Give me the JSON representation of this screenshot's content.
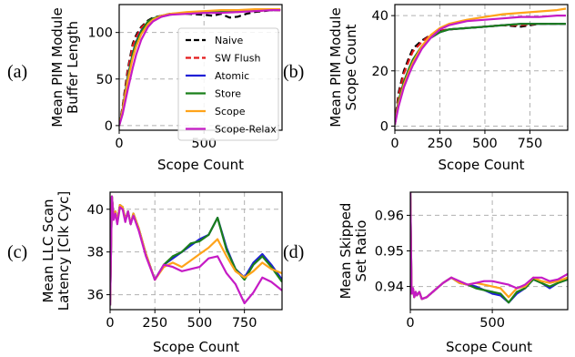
{
  "colors": {
    "Naive": "#000000",
    "SW Flush": "#e41a1c",
    "Atomic": "#1f1fd6",
    "Store": "#1a7f1a",
    "Scope": "#ffa31a",
    "Scope-Relax": "#c51bc5"
  },
  "chart_data": [
    {
      "id": "a",
      "panel_label": "(a)",
      "type": "line",
      "xlabel": "Scope Count",
      "ylabel": [
        "Mean PIM Module",
        "Buffer Length"
      ],
      "xlim": [
        0,
        960
      ],
      "ylim": [
        -5,
        130
      ],
      "xticks": [
        0,
        500
      ],
      "yticks": [
        0,
        50,
        100
      ],
      "grid": true,
      "legend": {
        "placement": "lower-right",
        "entries": [
          "Naive",
          "SW Flush",
          "Atomic",
          "Store",
          "Scope",
          "Scope-Relax"
        ]
      },
      "series": [
        {
          "name": "Naive",
          "style": "dashed",
          "x": [
            0,
            20,
            50,
            80,
            100,
            130,
            170,
            200,
            250,
            300,
            400,
            500,
            550,
            600,
            650,
            700,
            750,
            800,
            850,
            900,
            950
          ],
          "y": [
            0,
            20,
            60,
            88,
            97,
            106,
            113,
            116,
            118,
            120,
            120,
            119,
            118,
            120,
            116,
            117,
            120,
            122,
            123,
            124,
            124
          ]
        },
        {
          "name": "SW Flush",
          "style": "dashed",
          "x": [
            0,
            20,
            50,
            80,
            100,
            130,
            170,
            200,
            250,
            300,
            400,
            500,
            600,
            700,
            800,
            900,
            950
          ],
          "y": [
            0,
            19,
            58,
            86,
            95,
            105,
            112,
            115,
            118,
            120,
            121,
            121,
            122,
            122,
            123,
            124,
            124
          ]
        },
        {
          "name": "Atomic",
          "style": "solid",
          "x": [
            0,
            20,
            50,
            80,
            100,
            130,
            170,
            200,
            250,
            300,
            400,
            500,
            600,
            700,
            800,
            900,
            950
          ],
          "y": [
            0,
            17,
            52,
            78,
            90,
            102,
            111,
            114,
            117,
            119,
            121,
            122,
            122,
            123,
            124,
            124,
            125
          ]
        },
        {
          "name": "Store",
          "style": "solid",
          "x": [
            0,
            20,
            50,
            80,
            100,
            130,
            170,
            200,
            250,
            300,
            400,
            500,
            600,
            700,
            800,
            900,
            950
          ],
          "y": [
            0,
            17,
            51,
            77,
            89,
            101,
            112,
            115,
            118,
            120,
            121,
            122,
            122,
            123,
            124,
            124,
            125
          ]
        },
        {
          "name": "Scope",
          "style": "solid",
          "x": [
            0,
            20,
            50,
            80,
            100,
            130,
            170,
            200,
            250,
            300,
            400,
            500,
            600,
            700,
            800,
            900,
            950
          ],
          "y": [
            0,
            16,
            48,
            73,
            85,
            98,
            109,
            114,
            118,
            120,
            122,
            123,
            124,
            124,
            125,
            125,
            125
          ]
        },
        {
          "name": "Scope-Relax",
          "style": "solid",
          "x": [
            0,
            20,
            50,
            80,
            100,
            130,
            170,
            200,
            250,
            300,
            400,
            500,
            600,
            700,
            800,
            900,
            950
          ],
          "y": [
            0,
            12,
            38,
            62,
            76,
            92,
            106,
            112,
            117,
            119,
            120,
            121,
            121,
            122,
            123,
            124,
            124
          ]
        }
      ]
    },
    {
      "id": "b",
      "panel_label": "(b)",
      "type": "line",
      "xlabel": "Scope Count",
      "ylabel": [
        "Mean PIM Module",
        "Scope Count"
      ],
      "xlim": [
        0,
        960
      ],
      "ylim": [
        -1.5,
        44
      ],
      "xticks": [
        0,
        250,
        500,
        750
      ],
      "yticks": [
        0,
        20,
        40
      ],
      "grid": true,
      "series": [
        {
          "name": "Naive",
          "style": "dashed",
          "x": [
            0,
            20,
            50,
            80,
            100,
            150,
            200,
            250,
            300,
            400,
            500,
            600,
            700,
            800,
            900,
            950
          ],
          "y": [
            1,
            12,
            20,
            25,
            28,
            31,
            33,
            34.5,
            35,
            35.5,
            36,
            36.5,
            36,
            37,
            37,
            37
          ]
        },
        {
          "name": "SW Flush",
          "style": "dashed",
          "x": [
            0,
            20,
            50,
            80,
            100,
            150,
            200,
            250,
            300,
            400,
            500,
            600,
            700,
            800,
            900,
            950
          ],
          "y": [
            1,
            11,
            19,
            24,
            27,
            30.5,
            33,
            34.5,
            35,
            35.5,
            36,
            36.5,
            36.5,
            37,
            37,
            37
          ]
        },
        {
          "name": "Atomic",
          "style": "solid",
          "x": [
            0,
            20,
            50,
            80,
            100,
            150,
            200,
            250,
            300,
            400,
            500,
            600,
            700,
            800,
            900,
            950
          ],
          "y": [
            0.5,
            9,
            16,
            21,
            24,
            29,
            32,
            34,
            35,
            35.5,
            36,
            36.5,
            37,
            37,
            37,
            37
          ]
        },
        {
          "name": "Store",
          "style": "solid",
          "x": [
            0,
            20,
            50,
            80,
            100,
            150,
            200,
            250,
            300,
            400,
            500,
            600,
            700,
            800,
            900,
            950
          ],
          "y": [
            0.5,
            9,
            16,
            21,
            24,
            29,
            32,
            34,
            35,
            35.5,
            36,
            36.5,
            37,
            37,
            37,
            37
          ]
        },
        {
          "name": "Scope",
          "style": "solid",
          "x": [
            0,
            20,
            50,
            80,
            100,
            150,
            200,
            250,
            300,
            400,
            500,
            600,
            700,
            800,
            900,
            950
          ],
          "y": [
            0.5,
            8,
            15,
            20,
            23,
            29,
            33,
            35.5,
            37,
            38.5,
            39.5,
            40.5,
            41,
            41.5,
            42,
            42.5
          ]
        },
        {
          "name": "Scope-Relax",
          "style": "solid",
          "x": [
            0,
            20,
            50,
            80,
            100,
            150,
            200,
            250,
            300,
            400,
            500,
            600,
            700,
            800,
            900,
            950
          ],
          "y": [
            0.5,
            7,
            14,
            19,
            22,
            28,
            32,
            35,
            36.5,
            38,
            38.5,
            39,
            39.5,
            39.5,
            40,
            40
          ]
        }
      ]
    },
    {
      "id": "c",
      "panel_label": "(c)",
      "type": "line",
      "xlabel": "Scope Count",
      "ylabel": [
        "Mean LLC Scan",
        "Latency [Clk Cyc]"
      ],
      "xlim": [
        0,
        960
      ],
      "ylim": [
        35.3,
        40.8
      ],
      "xticks": [
        0,
        250,
        500,
        750
      ],
      "yticks": [
        36,
        38,
        40
      ],
      "grid": true,
      "series": [
        {
          "name": "Atomic",
          "style": "solid",
          "x": [
            0,
            10,
            20,
            30,
            40,
            55,
            70,
            85,
            100,
            115,
            130,
            160,
            200,
            250,
            300,
            350,
            400,
            450,
            500,
            550,
            600,
            650,
            700,
            750,
            800,
            850,
            900,
            960
          ],
          "y": [
            35.5,
            40.6,
            39.6,
            39.9,
            39.4,
            40.2,
            40.1,
            39.5,
            39.9,
            39.3,
            39.8,
            39.1,
            37.9,
            36.7,
            37.4,
            37.7,
            38.0,
            38.3,
            38.6,
            38.8,
            39.6,
            38.2,
            37.2,
            36.8,
            37.5,
            37.9,
            37.4,
            36.7
          ]
        },
        {
          "name": "Store",
          "style": "solid",
          "x": [
            0,
            10,
            20,
            30,
            40,
            55,
            70,
            85,
            100,
            115,
            130,
            160,
            200,
            250,
            300,
            350,
            400,
            450,
            500,
            550,
            600,
            650,
            700,
            750,
            800,
            850,
            900,
            960
          ],
          "y": [
            35.5,
            40.6,
            39.6,
            39.9,
            39.4,
            40.2,
            40.1,
            39.5,
            39.9,
            39.3,
            39.8,
            39.1,
            37.9,
            36.7,
            37.4,
            37.8,
            38.0,
            38.4,
            38.5,
            38.8,
            39.6,
            38.1,
            37.2,
            36.7,
            37.4,
            37.8,
            37.3,
            36.6
          ]
        },
        {
          "name": "Scope",
          "style": "solid",
          "x": [
            0,
            10,
            20,
            30,
            40,
            55,
            70,
            85,
            100,
            115,
            130,
            160,
            200,
            250,
            300,
            350,
            400,
            450,
            500,
            550,
            600,
            650,
            700,
            750,
            800,
            850,
            900,
            960
          ],
          "y": [
            35.5,
            40.6,
            39.6,
            39.9,
            39.4,
            40.2,
            40.1,
            39.5,
            39.9,
            39.3,
            39.8,
            39.1,
            37.9,
            36.7,
            37.3,
            37.5,
            37.3,
            37.6,
            37.9,
            38.2,
            38.6,
            37.8,
            37.1,
            36.8,
            37.1,
            37.5,
            37.2,
            37.0
          ]
        },
        {
          "name": "Scope-Relax",
          "style": "solid",
          "x": [
            0,
            10,
            20,
            30,
            40,
            55,
            70,
            85,
            100,
            115,
            130,
            160,
            200,
            250,
            300,
            350,
            400,
            450,
            500,
            550,
            600,
            650,
            700,
            750,
            800,
            850,
            900,
            960
          ],
          "y": [
            35.5,
            40.6,
            39.5,
            39.8,
            39.3,
            40.1,
            40.0,
            39.4,
            39.9,
            39.3,
            39.7,
            39.0,
            37.8,
            36.7,
            37.4,
            37.3,
            37.1,
            37.2,
            37.3,
            37.7,
            37.8,
            37.0,
            36.5,
            35.6,
            36.1,
            36.8,
            36.6,
            36.2
          ]
        }
      ]
    },
    {
      "id": "d",
      "panel_label": "(d)",
      "type": "line",
      "xlabel": "Scope Count",
      "ylabel": [
        "Mean Skipped",
        "Set Ratio"
      ],
      "xlim": [
        0,
        960
      ],
      "ylim": [
        0.9335,
        0.9665
      ],
      "xticks": [
        0,
        500
      ],
      "yticks": [
        0.94,
        0.95,
        0.96
      ],
      "grid": true,
      "series": [
        {
          "name": "Atomic",
          "style": "solid",
          "x": [
            0,
            8,
            16,
            24,
            32,
            40,
            55,
            70,
            100,
            150,
            200,
            250,
            300,
            350,
            400,
            450,
            500,
            550,
            600,
            650,
            700,
            750,
            800,
            850,
            900,
            960
          ],
          "y": [
            0.9665,
            0.938,
            0.9395,
            0.937,
            0.9385,
            0.9375,
            0.9385,
            0.9365,
            0.937,
            0.939,
            0.941,
            0.9425,
            0.941,
            0.9405,
            0.94,
            0.939,
            0.938,
            0.9375,
            0.9355,
            0.938,
            0.9395,
            0.942,
            0.941,
            0.9395,
            0.941,
            0.942
          ]
        },
        {
          "name": "Store",
          "style": "solid",
          "x": [
            0,
            8,
            16,
            24,
            32,
            40,
            55,
            70,
            100,
            150,
            200,
            250,
            300,
            350,
            400,
            450,
            500,
            550,
            600,
            650,
            700,
            750,
            800,
            850,
            900,
            960
          ],
          "y": [
            0.9665,
            0.938,
            0.9395,
            0.937,
            0.9385,
            0.9375,
            0.9385,
            0.9365,
            0.937,
            0.939,
            0.941,
            0.9425,
            0.941,
            0.9405,
            0.9395,
            0.939,
            0.9385,
            0.938,
            0.9355,
            0.9385,
            0.9395,
            0.942,
            0.941,
            0.94,
            0.941,
            0.942
          ]
        },
        {
          "name": "Scope",
          "style": "solid",
          "x": [
            0,
            8,
            16,
            24,
            32,
            40,
            55,
            70,
            100,
            150,
            200,
            250,
            300,
            350,
            400,
            450,
            500,
            550,
            600,
            650,
            700,
            750,
            800,
            850,
            900,
            960
          ],
          "y": [
            0.9665,
            0.938,
            0.9395,
            0.937,
            0.9385,
            0.9375,
            0.9385,
            0.9365,
            0.937,
            0.939,
            0.941,
            0.9425,
            0.941,
            0.9405,
            0.941,
            0.9405,
            0.94,
            0.9395,
            0.937,
            0.9395,
            0.94,
            0.9425,
            0.9415,
            0.941,
            0.9415,
            0.9425
          ]
        },
        {
          "name": "Scope-Relax",
          "style": "solid",
          "x": [
            0,
            8,
            16,
            24,
            32,
            40,
            55,
            70,
            100,
            150,
            200,
            250,
            300,
            350,
            400,
            450,
            500,
            550,
            600,
            650,
            700,
            750,
            800,
            850,
            900,
            960
          ],
          "y": [
            0.9665,
            0.938,
            0.9395,
            0.937,
            0.9385,
            0.9375,
            0.9385,
            0.9365,
            0.937,
            0.939,
            0.941,
            0.9425,
            0.9415,
            0.9405,
            0.941,
            0.9415,
            0.9415,
            0.941,
            0.9405,
            0.9395,
            0.9405,
            0.9425,
            0.9425,
            0.9415,
            0.942,
            0.9435
          ]
        }
      ]
    }
  ]
}
